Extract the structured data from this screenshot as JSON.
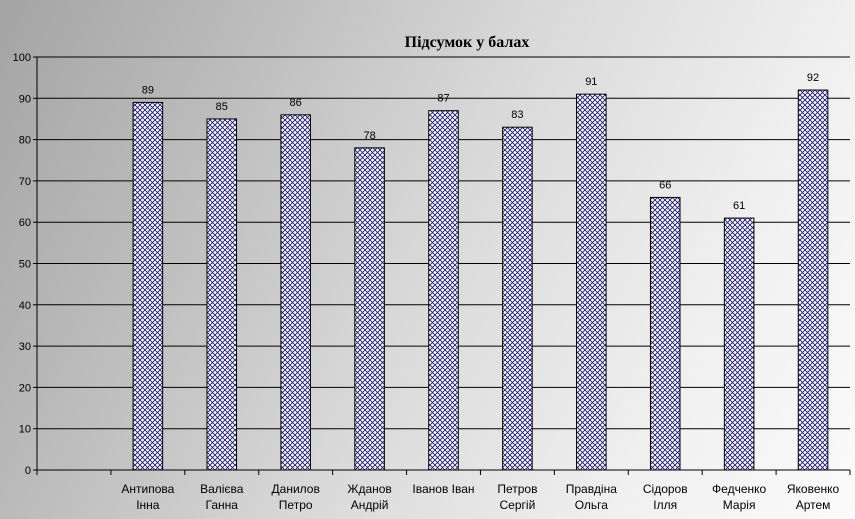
{
  "chart_data": {
    "type": "bar",
    "title": "Підсумок у балах",
    "xlabel": "",
    "ylabel": "",
    "ylim": [
      0,
      100
    ],
    "yticks": [
      0,
      10,
      20,
      30,
      40,
      50,
      60,
      70,
      80,
      90,
      100
    ],
    "grid": true,
    "legend": "none",
    "bar_fill": "crosshatch",
    "colors": {
      "bar_fill": "#ffffff",
      "bar_hatch": "#1a1a6e",
      "bar_border": "#000000",
      "gridline": "#000000"
    },
    "categories": [
      "",
      "Антипова Інна",
      "Валієва Ганна",
      "Данилов Петро",
      "Жданов Андрій",
      "Іванов Іван",
      "Петров Сергій",
      "Правдіна Ольга",
      "Сідоров Ілля",
      "Федченко Марія",
      "Яковенко Артем"
    ],
    "category_lines": [
      [],
      [
        "Антипова",
        "Інна"
      ],
      [
        "Валієва",
        "Ганна"
      ],
      [
        "Данилов",
        "Петро"
      ],
      [
        "Жданов",
        "Андрій"
      ],
      [
        "Іванов Іван"
      ],
      [
        "Петров",
        "Сергій"
      ],
      [
        "Правдіна",
        "Ольга"
      ],
      [
        "Сідоров",
        "Ілля"
      ],
      [
        "Федченко",
        "Марія"
      ],
      [
        "Яковенко",
        "Артем"
      ]
    ],
    "values": [
      null,
      89,
      85,
      86,
      78,
      87,
      83,
      91,
      66,
      61,
      92
    ]
  }
}
